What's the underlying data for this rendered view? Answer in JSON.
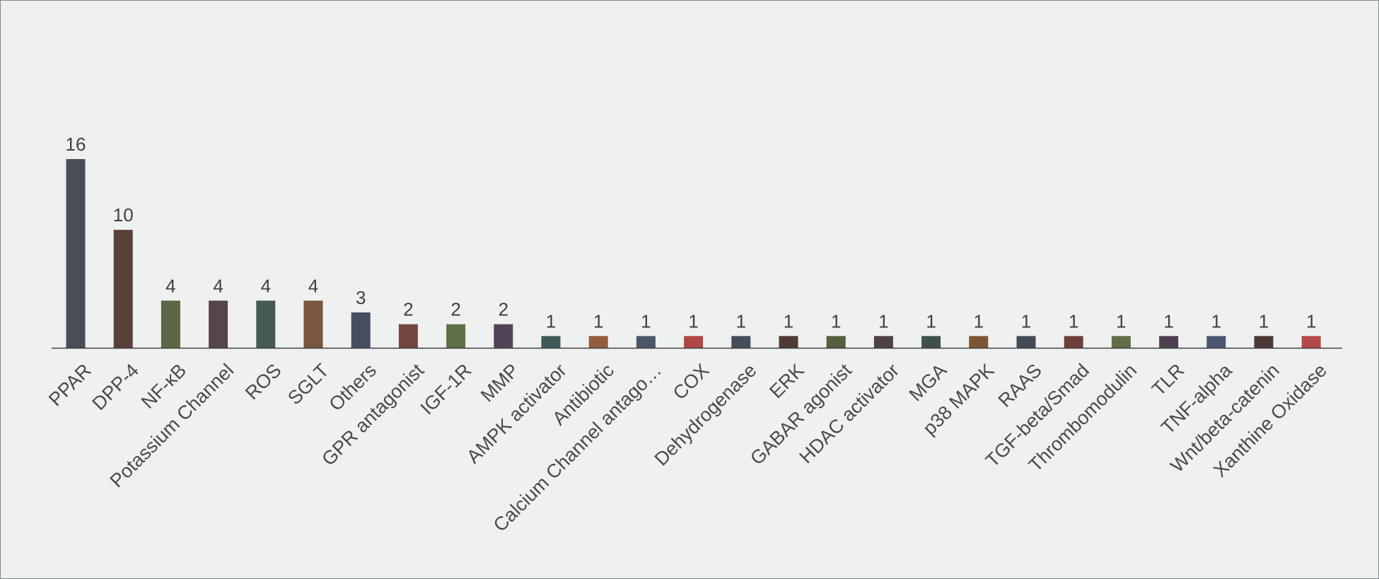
{
  "chart_data": {
    "type": "bar",
    "title": "",
    "xlabel": "",
    "ylabel": "",
    "ylim": [
      0,
      16
    ],
    "grid": false,
    "legend": "none",
    "data_labels": true,
    "categories": [
      "PPAR",
      "DPP-4",
      "NF-κB",
      "Potassium Channel",
      "ROS",
      "SGLT",
      "Others",
      "GPR antagonist",
      "IGF-1R",
      "MMP",
      "AMPK activator",
      "Antibiotic",
      "Calcium Channel antago…",
      "COX",
      "Dehydrogenase",
      "ERK",
      "GABAR agonist",
      "HDAC activator",
      "MGA",
      "p38 MAPK",
      "RAAS",
      "TGF-beta/Smad",
      "Thrombomodulin",
      "TLR",
      "TNF-alpha",
      "Wnt/beta-catenin",
      "Xanthine Oxidase"
    ],
    "values": [
      16,
      10,
      4,
      4,
      4,
      4,
      3,
      2,
      2,
      2,
      1,
      1,
      1,
      1,
      1,
      1,
      1,
      1,
      1,
      1,
      1,
      1,
      1,
      1,
      1,
      1,
      1
    ],
    "colors": [
      "#4a4e58",
      "#574138",
      "#5b6645",
      "#55464e",
      "#475a56",
      "#7a573c",
      "#464f61",
      "#714540",
      "#5d7048",
      "#514456",
      "#3e5a58",
      "#945d3c",
      "#4a566a",
      "#b24644",
      "#454e5c",
      "#4f3b33",
      "#565f40",
      "#50404a",
      "#3e504a",
      "#7d5534",
      "#434b59",
      "#6d4039",
      "#5f6e46",
      "#4e4050",
      "#4b5670",
      "#4a3a33",
      "#b54848"
    ]
  }
}
